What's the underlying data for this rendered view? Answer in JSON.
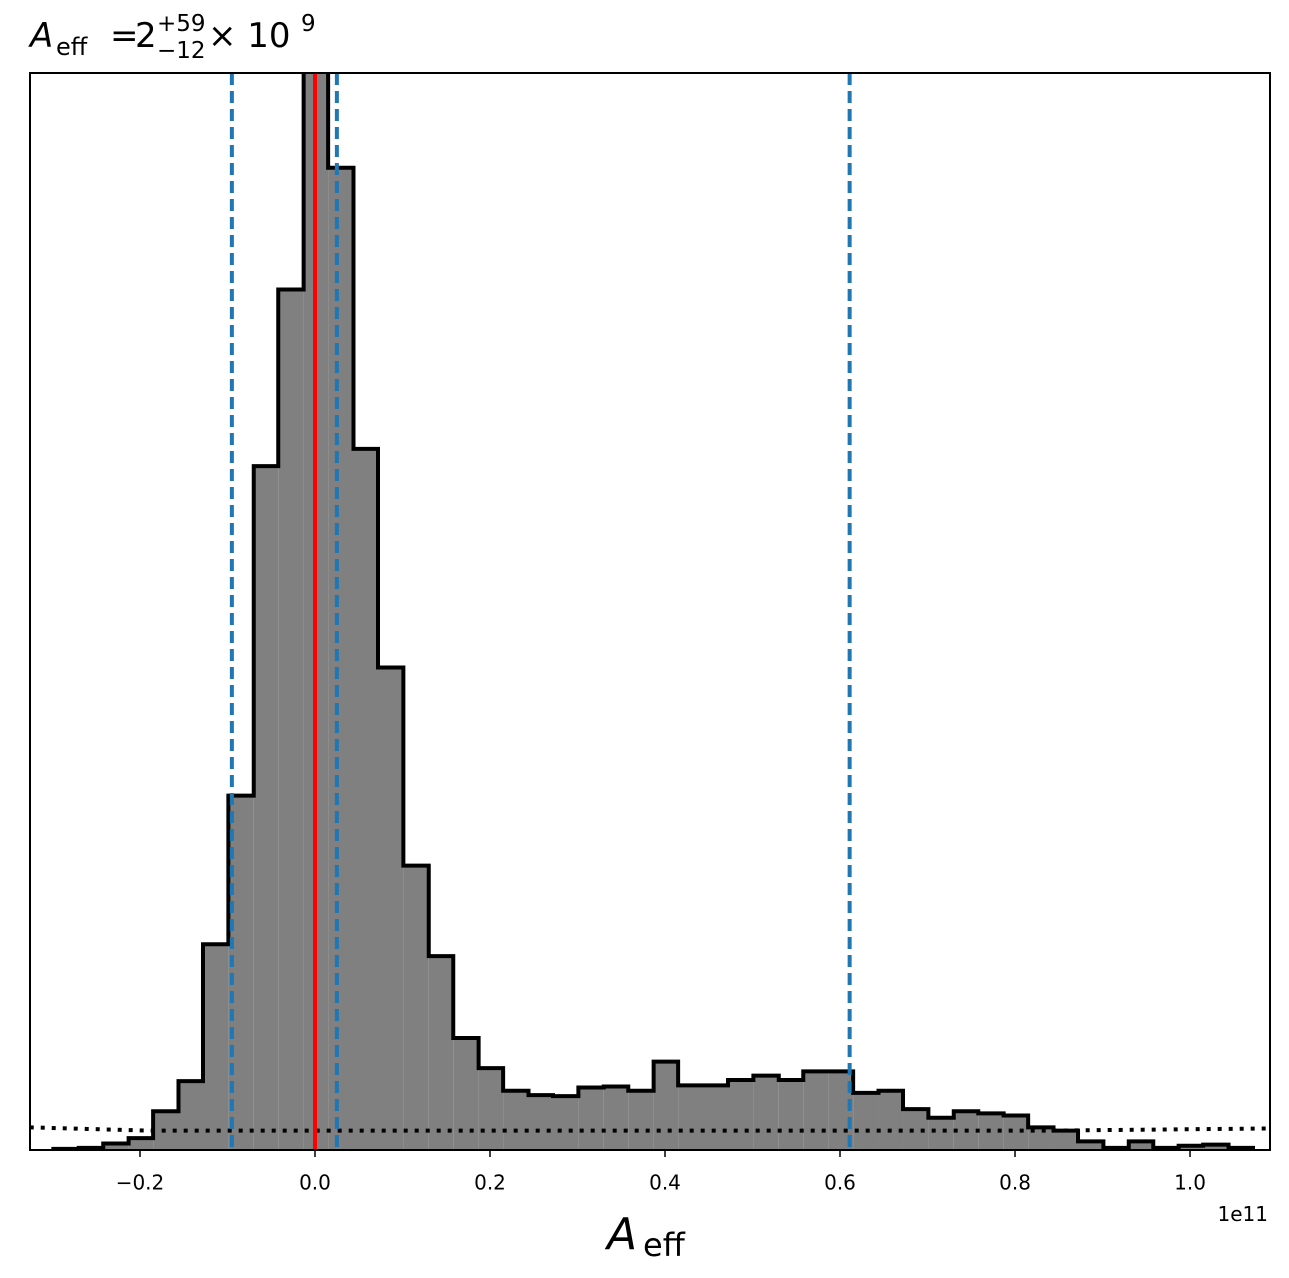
{
  "chart_data": {
    "type": "histogram",
    "title": {
      "symbol": "A",
      "subscript": "eff",
      "relation": "=",
      "value": "2",
      "upper": "+59",
      "lower": "−12",
      "multiplier": "× 10",
      "exponent": "9"
    },
    "xlabel": {
      "symbol": "A",
      "subscript": "eff"
    },
    "x_offset_label": "1e11",
    "bins": [
      -0.299,
      -0.27,
      -0.242,
      -0.213,
      -0.185,
      -0.156,
      -0.128,
      -0.099,
      -0.07,
      -0.042,
      -0.013,
      0.015,
      0.044,
      0.072,
      0.101,
      0.13,
      0.158,
      0.187,
      0.215,
      0.244,
      0.272,
      0.301,
      0.33,
      0.358,
      0.387,
      0.415,
      0.444,
      0.472,
      0.501,
      0.53,
      0.558,
      0.587,
      0.615,
      0.644,
      0.672,
      0.701,
      0.73,
      0.758,
      0.787,
      0.815,
      0.844,
      0.872,
      0.901,
      0.93,
      0.958,
      0.987,
      1.015,
      1.044,
      1.072
    ],
    "values": [
      0.1,
      0.2,
      0.6,
      1.1,
      3.6,
      6.4,
      19.1,
      32.9,
      63.5,
      79.9,
      104,
      91.2,
      65.1,
      44.8,
      26.4,
      18.0,
      10.4,
      7.6,
      5.5,
      5.1,
      5.0,
      5.8,
      5.9,
      5.5,
      8.2,
      6.0,
      6.0,
      6.5,
      6.9,
      6.5,
      7.3,
      7.3,
      5.3,
      5.5,
      3.8,
      3.0,
      3.6,
      3.4,
      3.2,
      2.1,
      1.8,
      0.8,
      0.2,
      0.8,
      0.2,
      0.4,
      0.5,
      0.2
    ],
    "color": "#808080",
    "edgecolor": "#000000",
    "vlines": [
      {
        "x": 0,
        "color": "#ff0000",
        "style": "solid"
      },
      {
        "x": -0.095,
        "color": "#1f77b4",
        "style": "dashed"
      },
      {
        "x": 0.025,
        "color": "#1f77b4",
        "style": "dashed"
      },
      {
        "x": 0.611,
        "color": "#1f77b4",
        "style": "dashed"
      }
    ],
    "reference_line": {
      "x": [
        -0.326,
        -0.19,
        0.5,
        0.84,
        1.091
      ],
      "values": [
        2.1,
        1.8,
        1.8,
        1.8,
        2.0
      ],
      "color": "#000000",
      "style": "dotted"
    },
    "xlim": [
      -0.3257,
      1.0914
    ],
    "ylim": [
      0,
      100
    ],
    "xticks": [
      {
        "value": -0.2,
        "label": "−0.2"
      },
      {
        "value": 0,
        "label": "0.0"
      },
      0.2,
      0.4,
      0.6,
      0.8,
      {
        "value": 1.0,
        "label": "1.0"
      }
    ]
  }
}
